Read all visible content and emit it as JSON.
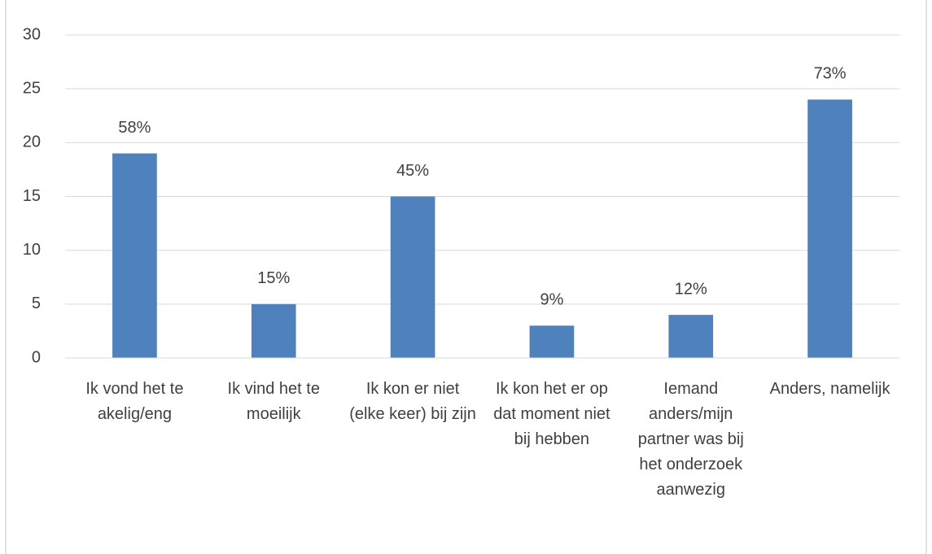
{
  "chart_data": {
    "type": "bar",
    "categories": [
      "Ik vond het te akelig/eng",
      "Ik vind het te moeilijk",
      "Ik kon er niet (elke keer) bij zijn",
      "Ik kon het er op dat moment niet bij hebben",
      "Iemand anders/mijn partner was bij het onderzoek aanwezig",
      "Anders, namelijk"
    ],
    "values": [
      19,
      5,
      15,
      3,
      4,
      24
    ],
    "annotations": [
      "58%",
      "15%",
      "45%",
      "9%",
      "12%",
      "73%"
    ],
    "color": "#4f81bd",
    "ylim": [
      0,
      30
    ],
    "yticks": [
      0,
      5,
      10,
      15,
      20,
      25,
      30
    ],
    "grid": true
  }
}
